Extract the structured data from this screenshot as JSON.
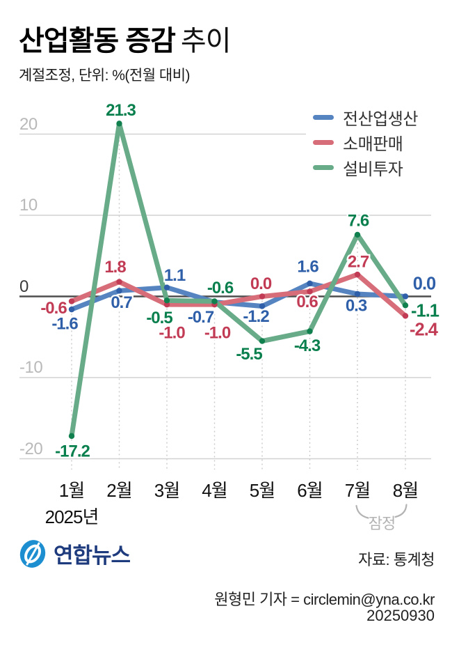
{
  "title": {
    "bold": "산업활동 증감",
    "light": "추이"
  },
  "subtitle": "계절조정, 단위: %(전월 대비)",
  "legend": [
    {
      "label": "전산업생산",
      "color": "#5584c1"
    },
    {
      "label": "소매판매",
      "color": "#d76d79"
    },
    {
      "label": "설비투자",
      "color": "#68ab88"
    }
  ],
  "chart_data": {
    "type": "line",
    "title": "산업활동 증감 추이",
    "unit_note": "계절조정, 단위: %(전월 대비)",
    "categories": [
      "1월",
      "2월",
      "3월",
      "4월",
      "5월",
      "6월",
      "7월",
      "8월"
    ],
    "year_label": "2025년",
    "provisional_label": "잠정",
    "provisional_months": [
      "7월",
      "8월"
    ],
    "series": [
      {
        "name": "전산업생산",
        "color": "#5584c1",
        "dot_color": "#2f5fa8",
        "label_color": "#2e5fa8",
        "values": [
          -1.6,
          0.7,
          1.1,
          -0.7,
          -1.2,
          1.6,
          0.3,
          0.0
        ]
      },
      {
        "name": "소매판매",
        "color": "#d76d79",
        "dot_color": "#c13b55",
        "label_color": "#c23b55",
        "values": [
          -0.6,
          1.8,
          -1.0,
          -1.0,
          0.0,
          0.6,
          2.7,
          -2.4
        ]
      },
      {
        "name": "설비투자",
        "color": "#68ab88",
        "dot_color": "#11804f",
        "label_color": "#0a7f4e",
        "values": [
          -17.2,
          21.3,
          -0.5,
          -0.6,
          -5.5,
          -4.3,
          7.6,
          -1.1
        ]
      }
    ],
    "y_ticks": [
      20,
      10,
      0,
      -10,
      -20
    ],
    "ylim": [
      -24,
      26
    ],
    "grid": true,
    "legend_position": "top-right"
  },
  "footer": {
    "logo_text": "연합뉴스",
    "source": "자료: 통계청",
    "byline": "원형민 기자 = circlemin@yna.co.kr",
    "date": "20250930"
  }
}
